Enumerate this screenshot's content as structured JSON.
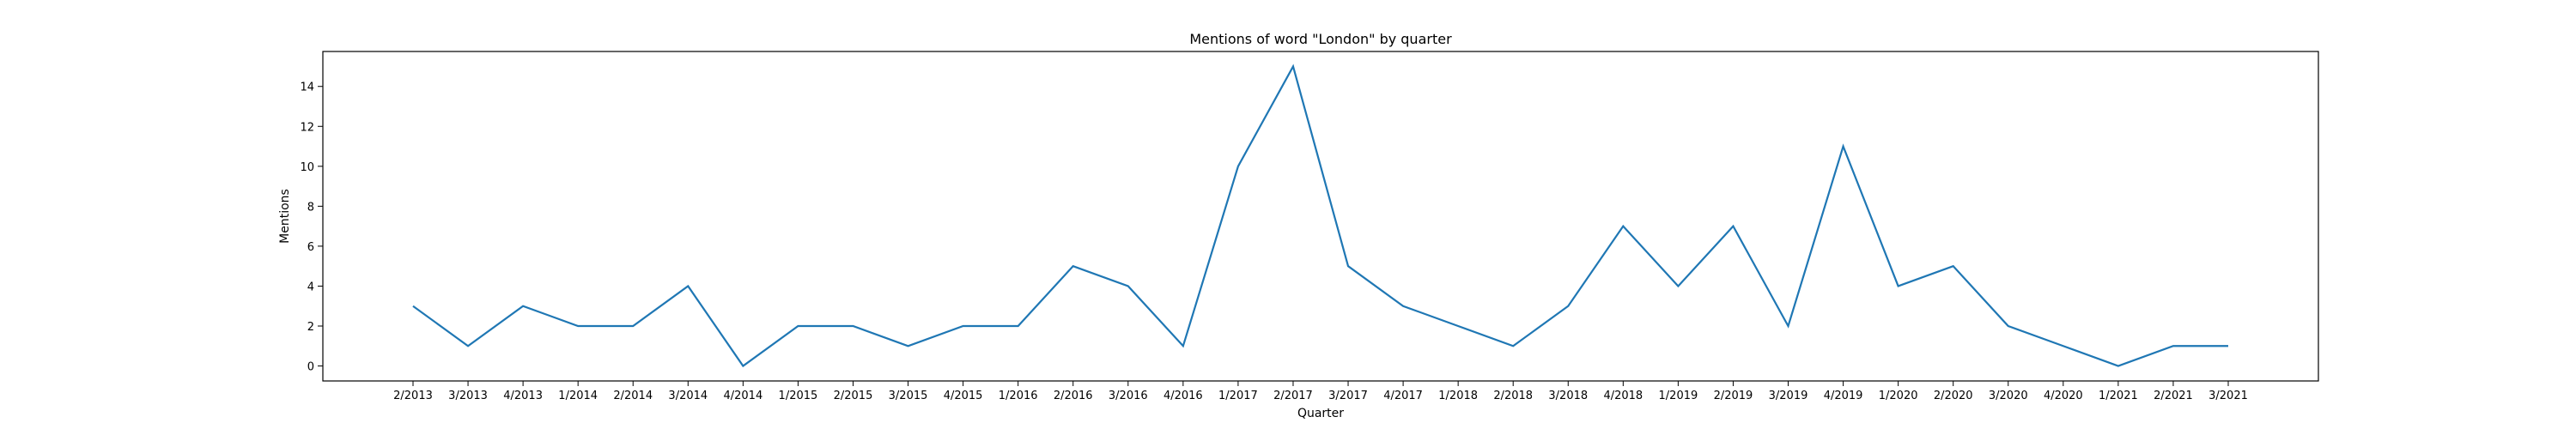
{
  "chart_data": {
    "type": "line",
    "title": "Mentions of word \"London\" by quarter",
    "xlabel": "Quarter",
    "ylabel": "Mentions",
    "ylim": [
      -0.75,
      15.75
    ],
    "yticks": [
      0,
      2,
      4,
      6,
      8,
      10,
      12,
      14
    ],
    "grid": false,
    "legend": "none",
    "line_color": "#1f77b4",
    "categories": [
      "2/2013",
      "3/2013",
      "4/2013",
      "1/2014",
      "2/2014",
      "3/2014",
      "4/2014",
      "1/2015",
      "2/2015",
      "3/2015",
      "4/2015",
      "1/2016",
      "2/2016",
      "3/2016",
      "4/2016",
      "1/2017",
      "2/2017",
      "3/2017",
      "4/2017",
      "1/2018",
      "2/2018",
      "3/2018",
      "4/2018",
      "1/2019",
      "2/2019",
      "3/2019",
      "4/2019",
      "1/2020",
      "2/2020",
      "3/2020",
      "4/2020",
      "1/2021",
      "2/2021",
      "3/2021"
    ],
    "values": [
      3,
      1,
      3,
      2,
      2,
      4,
      0,
      2,
      2,
      1,
      2,
      2,
      5,
      4,
      1,
      10,
      15,
      5,
      3,
      2,
      1,
      3,
      7,
      4,
      7,
      2,
      11,
      4,
      5,
      2,
      1,
      0,
      1,
      1
    ]
  }
}
